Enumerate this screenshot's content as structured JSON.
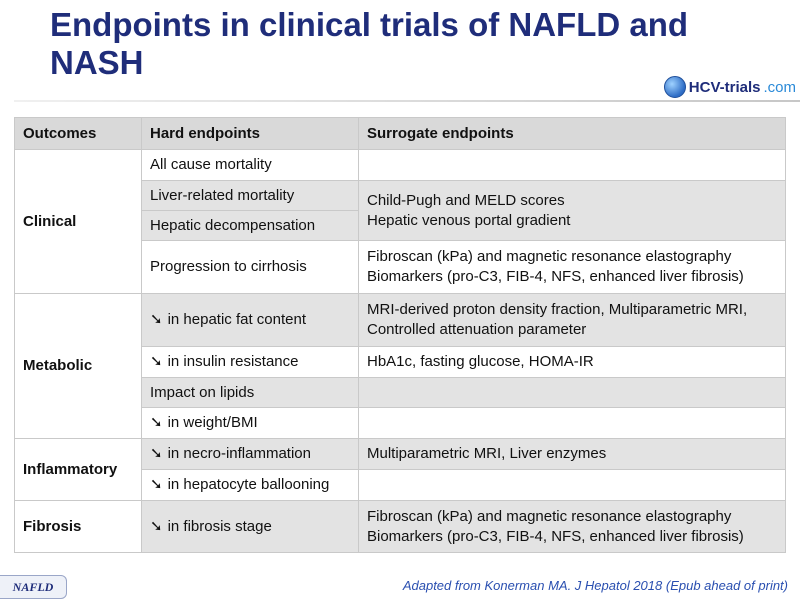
{
  "slide": {
    "title": "Endpoints in clinical trials of NAFLD and NASH",
    "logo": {
      "brand": "HCV-trials",
      "suffix": ".com",
      "icon": "globe-icon"
    },
    "footer": {
      "badge": "NAFLD",
      "source": "Adapted from Konerman MA. J Hepatol 2018 (Epub ahead of print)"
    }
  },
  "table": {
    "headers": [
      "Outcomes",
      "Hard endpoints",
      "Surrogate endpoints"
    ],
    "arrow": "➘",
    "groups": [
      {
        "label": "Clinical"
      },
      {
        "label": "Metabolic"
      },
      {
        "label": "Inflammatory"
      },
      {
        "label": "Fibrosis"
      }
    ],
    "rows": [
      {
        "hard": "All cause mortality",
        "surrogate": ""
      },
      {
        "hard": "Liver-related mortality",
        "surrogate": ""
      },
      {
        "hard": "Hepatic decompensation",
        "surrogate": ""
      },
      {
        "hard": "Progression to cirrhosis",
        "surrogate": ""
      },
      {
        "hard": "in hepatic fat content",
        "surrogate": "MRI-derived  proton density fraction, Multiparametric MRI, Controlled attenuation parameter"
      },
      {
        "hard": "in insulin resistance",
        "surrogate": "HbA1c, fasting glucose, HOMA-IR"
      },
      {
        "hard": "Impact on lipids",
        "surrogate": ""
      },
      {
        "hard": "in weight/BMI",
        "surrogate": ""
      },
      {
        "hard": "in necro-inflammation",
        "surrogate": "Multiparametric MRI, Liver enzymes"
      },
      {
        "hard": "in hepatocyte ballooning",
        "surrogate": ""
      },
      {
        "hard": "in fibrosis stage",
        "surrogate": ""
      }
    ],
    "merged_surrogate": {
      "line1": "Child-Pugh and MELD scores",
      "line2": "Hepatic venous portal gradient"
    },
    "fibrosis_surrogate": {
      "line1": "Fibroscan (kPa) and magnetic resonance elastography",
      "line2": "Biomarkers (pro-C3, FIB-4, NFS, enhanced liver fibrosis)"
    }
  }
}
